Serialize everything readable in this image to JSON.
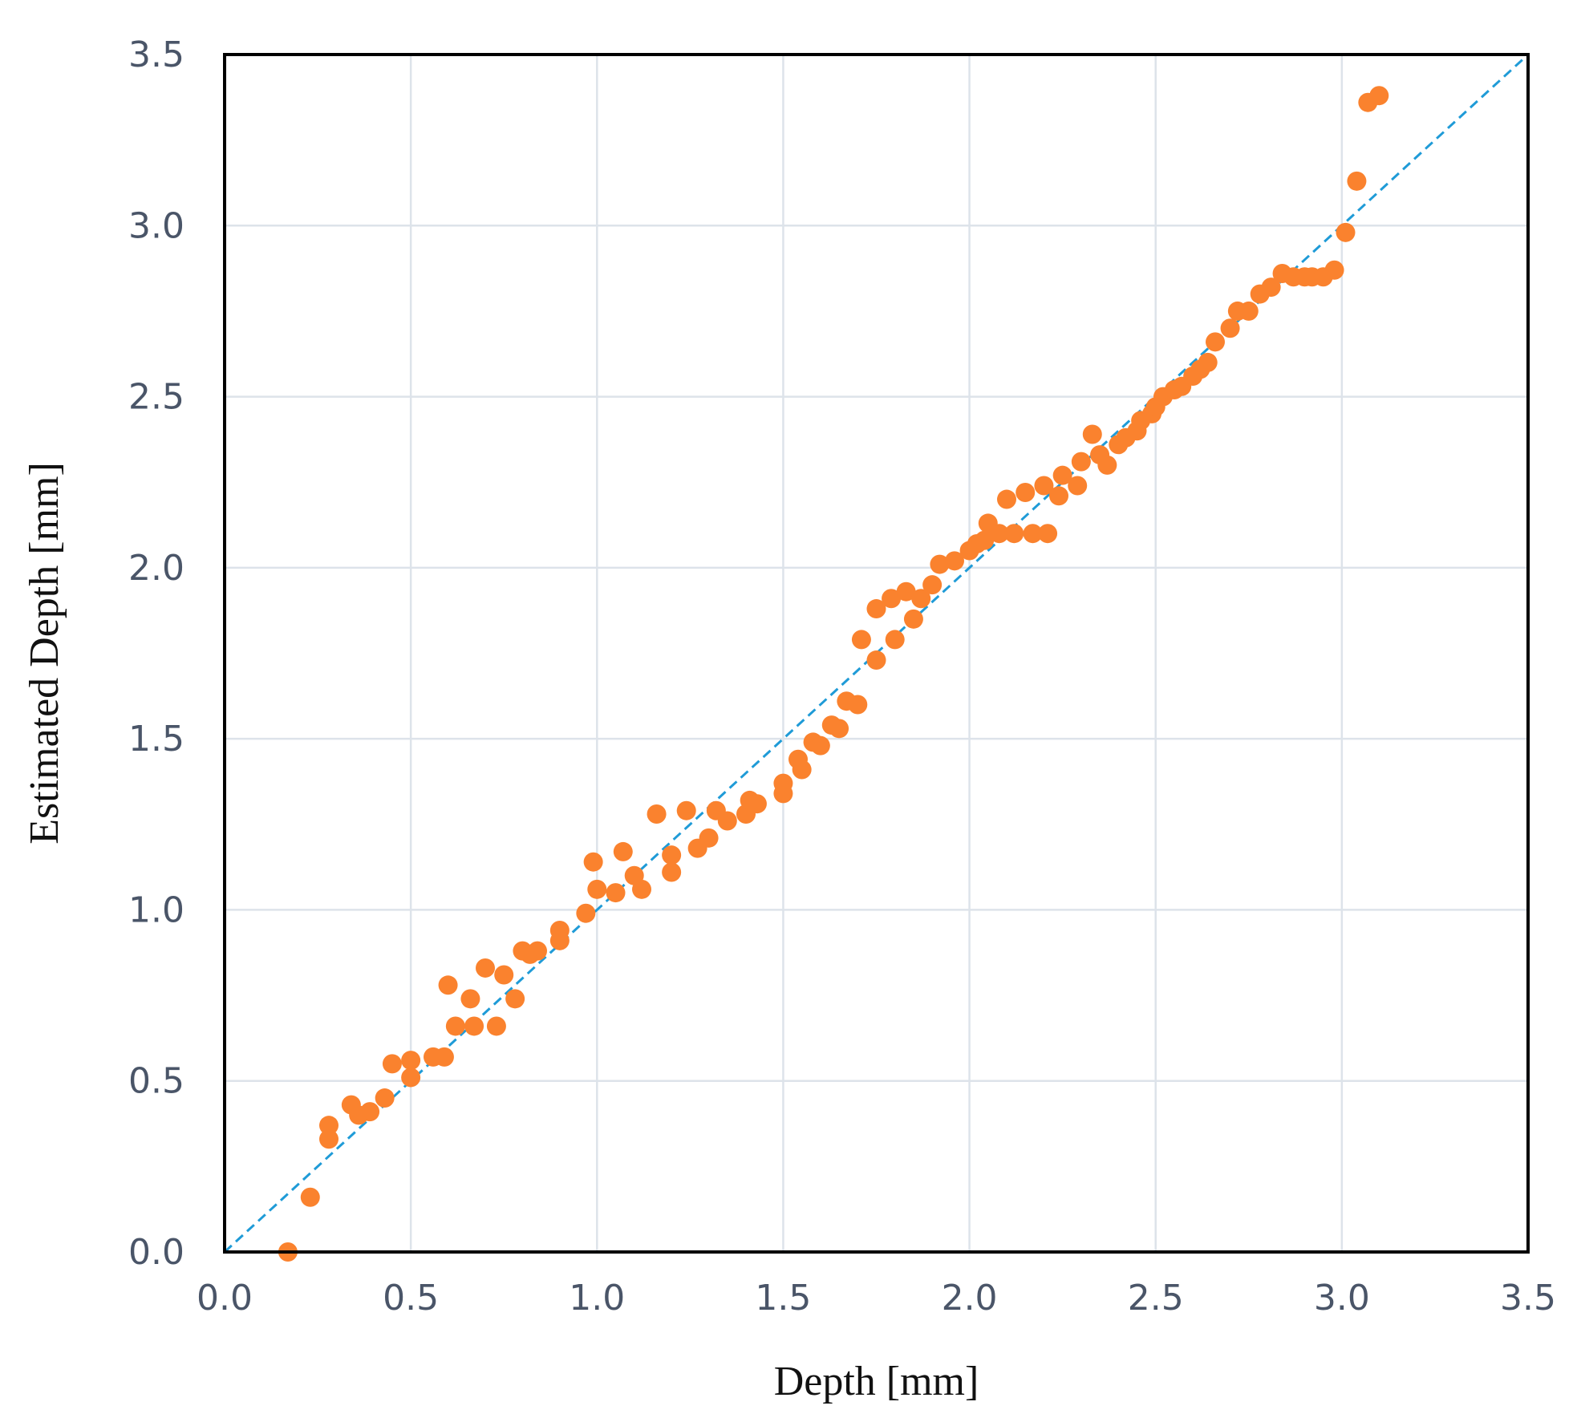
{
  "chart_data": {
    "type": "scatter",
    "title": "",
    "xlabel": "Depth [mm]",
    "ylabel": "Estimated Depth [mm]",
    "xlim": [
      0.0,
      3.5
    ],
    "ylim": [
      0.0,
      3.5
    ],
    "x_ticks": [
      "0.0",
      "0.5",
      "1.0",
      "1.5",
      "2.0",
      "2.5",
      "3.0",
      "3.5"
    ],
    "y_ticks": [
      "0.0",
      "0.5",
      "1.0",
      "1.5",
      "2.0",
      "2.5",
      "3.0",
      "3.5"
    ],
    "grid": true,
    "legend": "none",
    "reference_line": {
      "from": [
        0.0,
        0.0
      ],
      "to": [
        3.5,
        3.5
      ],
      "style": "dashed",
      "color": "#1f9bd7"
    },
    "marker_color": "#fa822e",
    "series": [
      {
        "points": [
          [
            0.17,
            0.0
          ],
          [
            0.23,
            0.16
          ],
          [
            0.28,
            0.33
          ],
          [
            0.28,
            0.37
          ],
          [
            0.34,
            0.43
          ],
          [
            0.36,
            0.4
          ],
          [
            0.39,
            0.41
          ],
          [
            0.43,
            0.45
          ],
          [
            0.45,
            0.55
          ],
          [
            0.5,
            0.51
          ],
          [
            0.5,
            0.56
          ],
          [
            0.56,
            0.57
          ],
          [
            0.59,
            0.57
          ],
          [
            0.6,
            0.78
          ],
          [
            0.62,
            0.66
          ],
          [
            0.66,
            0.74
          ],
          [
            0.67,
            0.66
          ],
          [
            0.7,
            0.83
          ],
          [
            0.73,
            0.66
          ],
          [
            0.75,
            0.81
          ],
          [
            0.78,
            0.74
          ],
          [
            0.8,
            0.88
          ],
          [
            0.82,
            0.87
          ],
          [
            0.84,
            0.88
          ],
          [
            0.9,
            0.91
          ],
          [
            0.9,
            0.94
          ],
          [
            0.97,
            0.99
          ],
          [
            0.99,
            1.14
          ],
          [
            1.0,
            1.06
          ],
          [
            1.05,
            1.05
          ],
          [
            1.07,
            1.17
          ],
          [
            1.1,
            1.1
          ],
          [
            1.12,
            1.06
          ],
          [
            1.16,
            1.28
          ],
          [
            1.2,
            1.11
          ],
          [
            1.2,
            1.16
          ],
          [
            1.24,
            1.29
          ],
          [
            1.27,
            1.18
          ],
          [
            1.3,
            1.21
          ],
          [
            1.32,
            1.29
          ],
          [
            1.35,
            1.26
          ],
          [
            1.4,
            1.28
          ],
          [
            1.41,
            1.32
          ],
          [
            1.43,
            1.31
          ],
          [
            1.5,
            1.34
          ],
          [
            1.5,
            1.37
          ],
          [
            1.54,
            1.44
          ],
          [
            1.55,
            1.41
          ],
          [
            1.58,
            1.49
          ],
          [
            1.6,
            1.48
          ],
          [
            1.63,
            1.54
          ],
          [
            1.65,
            1.53
          ],
          [
            1.67,
            1.61
          ],
          [
            1.7,
            1.6
          ],
          [
            1.71,
            1.79
          ],
          [
            1.75,
            1.73
          ],
          [
            1.75,
            1.88
          ],
          [
            1.79,
            1.91
          ],
          [
            1.8,
            1.79
          ],
          [
            1.83,
            1.93
          ],
          [
            1.85,
            1.85
          ],
          [
            1.87,
            1.91
          ],
          [
            1.9,
            1.95
          ],
          [
            1.92,
            2.01
          ],
          [
            1.96,
            2.02
          ],
          [
            2.0,
            2.05
          ],
          [
            2.02,
            2.07
          ],
          [
            2.04,
            2.08
          ],
          [
            2.05,
            2.13
          ],
          [
            2.08,
            2.1
          ],
          [
            2.1,
            2.2
          ],
          [
            2.12,
            2.1
          ],
          [
            2.15,
            2.22
          ],
          [
            2.17,
            2.1
          ],
          [
            2.2,
            2.24
          ],
          [
            2.21,
            2.1
          ],
          [
            2.24,
            2.21
          ],
          [
            2.25,
            2.27
          ],
          [
            2.29,
            2.24
          ],
          [
            2.3,
            2.31
          ],
          [
            2.33,
            2.39
          ],
          [
            2.35,
            2.33
          ],
          [
            2.37,
            2.3
          ],
          [
            2.4,
            2.36
          ],
          [
            2.42,
            2.38
          ],
          [
            2.45,
            2.4
          ],
          [
            2.46,
            2.43
          ],
          [
            2.49,
            2.45
          ],
          [
            2.5,
            2.47
          ],
          [
            2.52,
            2.5
          ],
          [
            2.55,
            2.52
          ],
          [
            2.57,
            2.53
          ],
          [
            2.6,
            2.56
          ],
          [
            2.62,
            2.58
          ],
          [
            2.64,
            2.6
          ],
          [
            2.66,
            2.66
          ],
          [
            2.7,
            2.7
          ],
          [
            2.72,
            2.75
          ],
          [
            2.75,
            2.75
          ],
          [
            2.78,
            2.8
          ],
          [
            2.81,
            2.82
          ],
          [
            2.84,
            2.86
          ],
          [
            2.87,
            2.85
          ],
          [
            2.9,
            2.85
          ],
          [
            2.92,
            2.85
          ],
          [
            2.95,
            2.85
          ],
          [
            2.98,
            2.87
          ],
          [
            3.01,
            2.98
          ],
          [
            3.04,
            3.13
          ],
          [
            3.07,
            3.36
          ],
          [
            3.1,
            3.38
          ]
        ]
      }
    ]
  }
}
